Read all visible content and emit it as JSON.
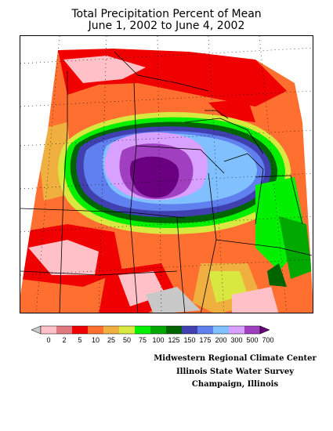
{
  "title": {
    "line1": "Total Precipitation Percent of Mean",
    "line2": "June 1, 2002 to June 4, 2002"
  },
  "legend": {
    "labels": [
      "0",
      "2",
      "5",
      "10",
      "25",
      "50",
      "75",
      "100",
      "125",
      "150",
      "175",
      "200",
      "300",
      "500",
      "700"
    ],
    "colors": [
      "#c8c8c8",
      "#ffc0c8",
      "#e07880",
      "#f00000",
      "#ff7030",
      "#f0b040",
      "#d8e840",
      "#00f000",
      "#00a800",
      "#006400",
      "#4040b0",
      "#6080f0",
      "#80c0ff",
      "#d8a0ff",
      "#a040c0",
      "#6a0080"
    ]
  },
  "credits": {
    "line1": "Midwestern Regional Climate Center",
    "line2": "Illinois State Water Survey",
    "line3": "Champaign, Illinois"
  }
}
